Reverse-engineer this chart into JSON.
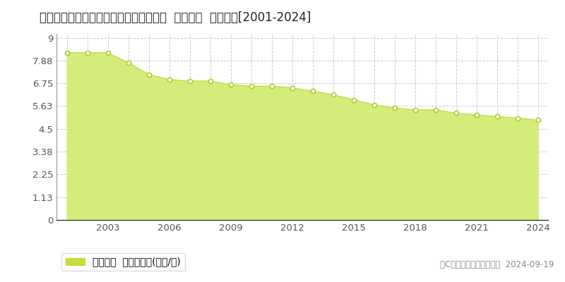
{
  "title": "鳥取県鳥取市久末字東土居２１７番１外  基準地価  地価推移[2001-2024]",
  "years": [
    2001,
    2002,
    2003,
    2004,
    2005,
    2006,
    2007,
    2008,
    2009,
    2010,
    2011,
    2012,
    2013,
    2014,
    2015,
    2016,
    2017,
    2018,
    2019,
    2020,
    2021,
    2022,
    2023,
    2024
  ],
  "values": [
    8.26,
    8.26,
    8.26,
    7.77,
    7.19,
    6.94,
    6.86,
    6.86,
    6.69,
    6.61,
    6.61,
    6.53,
    6.36,
    6.19,
    5.94,
    5.69,
    5.53,
    5.44,
    5.44,
    5.28,
    5.19,
    5.11,
    5.03,
    4.94
  ],
  "yticks": [
    0,
    1.13,
    2.25,
    3.38,
    4.5,
    5.63,
    6.75,
    7.88,
    9
  ],
  "ytick_labels": [
    "0",
    "1.13",
    "2.25",
    "3.38",
    "4.5",
    "5.63",
    "6.75",
    "7.88",
    "9"
  ],
  "ylim": [
    0,
    9.2
  ],
  "xlim_min": 2000.5,
  "xlim_max": 2024.5,
  "xticks": [
    2003,
    2006,
    2009,
    2012,
    2015,
    2018,
    2021,
    2024
  ],
  "fill_color": "#d4ed7a",
  "line_color": "#c8e050",
  "marker_facecolor": "#ffffff",
  "marker_edgecolor": "#b0cc30",
  "grid_color": "#cccccc",
  "background_color": "#ffffff",
  "plot_bg_color": "#ffffff",
  "legend_label": "基準地価  平均坪単価(万円/坪)",
  "legend_marker_color": "#c8dc40",
  "copyright_text": "（C）土地価格ドットコム  2024-09-19",
  "title_fontsize": 12,
  "tick_fontsize": 9.5,
  "legend_fontsize": 10,
  "copyright_fontsize": 8.5
}
